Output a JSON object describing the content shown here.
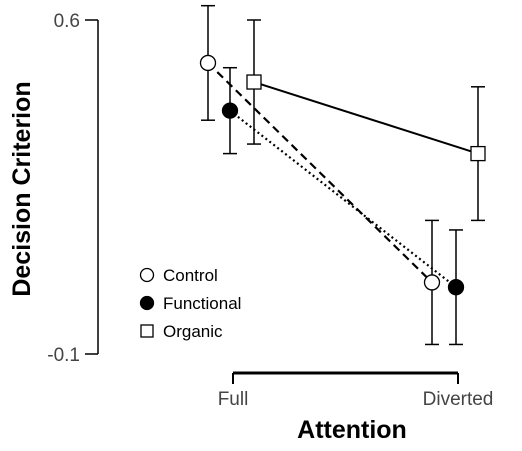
{
  "chart_data": {
    "type": "line",
    "title": "",
    "xlabel": "Attention",
    "ylabel": "Decision Criterion",
    "categories": [
      "Full",
      "Diverted"
    ],
    "ylim": [
      -0.1,
      0.6
    ],
    "yticks": [
      "0.6",
      "-0.1"
    ],
    "grid": false,
    "legend": "inside-lower-left",
    "series": [
      {
        "name": "Control",
        "marker": "open-circle",
        "line": "dashed",
        "values": [
          0.51,
          0.05
        ],
        "error": [
          0.12,
          0.13
        ]
      },
      {
        "name": "Functional",
        "marker": "filled-circle",
        "line": "dotted",
        "values": [
          0.41,
          0.04
        ],
        "error": [
          0.09,
          0.12
        ]
      },
      {
        "name": "Organic",
        "marker": "open-square",
        "line": "solid",
        "values": [
          0.47,
          0.32
        ],
        "error": [
          0.13,
          0.14
        ]
      }
    ],
    "colors": {
      "line": "#000000",
      "axis": "#000000",
      "tick_text": "#444444"
    }
  }
}
